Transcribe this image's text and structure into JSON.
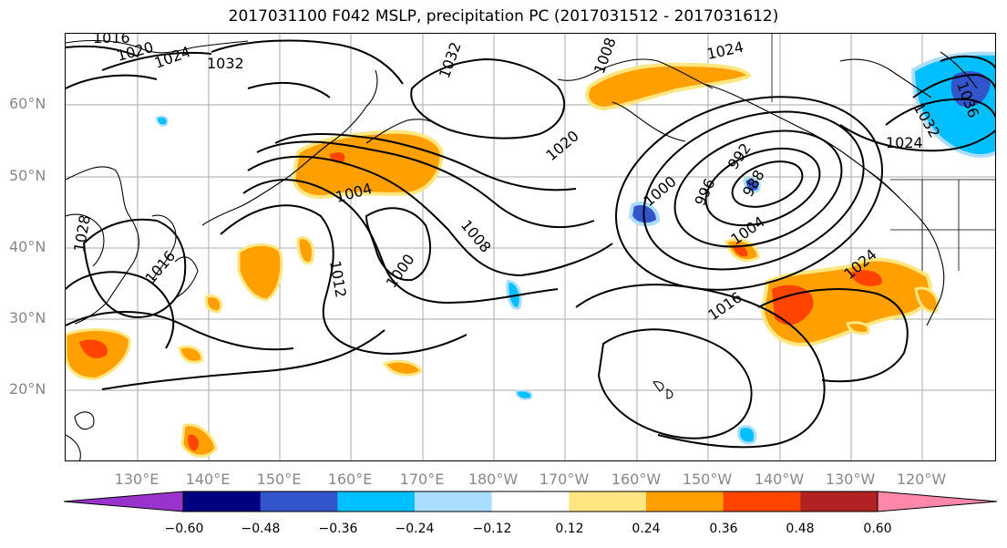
{
  "title": "2017031100 F042 MSLP, precipitation PC (2017031512 - 2017031612)",
  "lat_labels": [
    "60°N",
    "50°N",
    "40°N",
    "30°N",
    "20°N"
  ],
  "lon_labels": [
    "130°E",
    "140°E",
    "150°E",
    "160°E",
    "170°E",
    "180°W",
    "170°W",
    "160°W",
    "150°W",
    "140°W",
    "130°W",
    "120°W"
  ],
  "contour_labels": [
    "1016",
    "1020",
    "1024",
    "1032",
    "1032",
    "1008",
    "1024",
    "1020",
    "1004",
    "1008",
    "1000",
    "1012",
    "1028",
    "1016",
    "1000",
    "996",
    "992",
    "988",
    "1004",
    "1024",
    "1016",
    "1032",
    "1036",
    "1024"
  ],
  "colorbar": {
    "ticks": [
      "−0.60",
      "−0.48",
      "−0.36",
      "−0.24",
      "−0.12",
      "0.12",
      "0.24",
      "0.36",
      "0.48",
      "0.60"
    ],
    "colors": [
      "#9933cc",
      "#000080",
      "#3355cc",
      "#00bfff",
      "#aaddff",
      "#ffffff",
      "#ffe680",
      "#ffa000",
      "#ff4400",
      "#b22222",
      "#ff88aa"
    ]
  }
}
